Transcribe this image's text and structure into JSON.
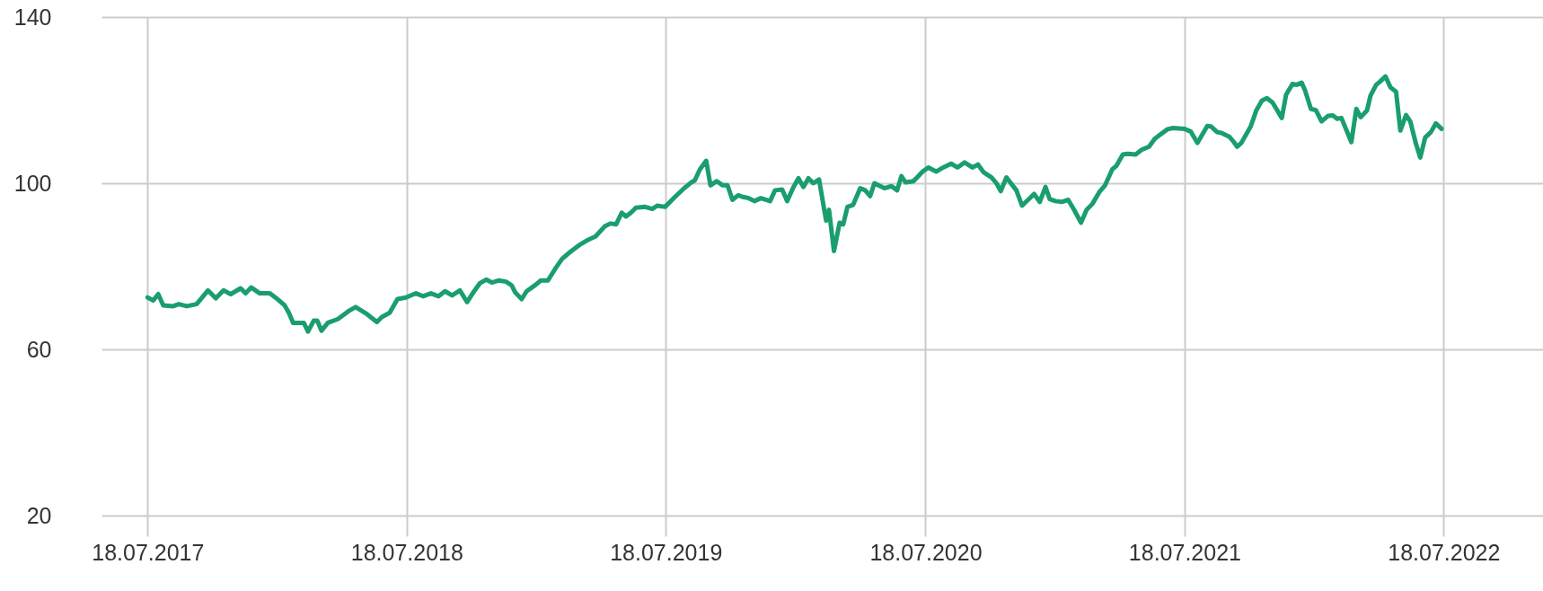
{
  "chart_data": {
    "type": "line",
    "x": [
      "2017-07-18",
      "2017-07-26",
      "2017-08-02",
      "2017-08-09",
      "2017-08-23",
      "2017-08-31",
      "2017-09-11",
      "2017-09-25",
      "2017-10-11",
      "2017-10-22",
      "2017-11-02",
      "2017-11-12",
      "2017-11-26",
      "2017-12-03",
      "2017-12-11",
      "2017-12-23",
      "2018-01-06",
      "2018-01-17",
      "2018-01-27",
      "2018-02-02",
      "2018-02-08",
      "2018-02-23",
      "2018-03-01",
      "2018-03-09",
      "2018-03-14",
      "2018-03-20",
      "2018-03-29",
      "2018-04-12",
      "2018-04-27",
      "2018-05-07",
      "2018-05-23",
      "2018-06-06",
      "2018-06-13",
      "2018-06-24",
      "2018-07-05",
      "2018-07-17",
      "2018-07-31",
      "2018-08-10",
      "2018-08-21",
      "2018-09-01",
      "2018-09-10",
      "2018-09-20",
      "2018-10-01",
      "2018-10-11",
      "2018-10-19",
      "2018-10-29",
      "2018-11-07",
      "2018-11-15",
      "2018-11-25",
      "2018-12-05",
      "2018-12-13",
      "2018-12-18",
      "2018-12-27",
      "2019-01-03",
      "2019-01-16",
      "2019-01-23",
      "2019-02-02",
      "2019-02-13",
      "2019-02-22",
      "2019-03-05",
      "2019-03-18",
      "2019-04-01",
      "2019-04-10",
      "2019-04-23",
      "2019-05-01",
      "2019-05-09",
      "2019-05-17",
      "2019-05-23",
      "2019-05-30",
      "2019-06-06",
      "2019-06-19",
      "2019-06-29",
      "2019-07-06",
      "2019-07-17",
      "2019-07-31",
      "2019-08-13",
      "2019-08-23",
      "2019-08-28",
      "2019-09-04",
      "2019-09-13",
      "2019-09-19",
      "2019-09-28",
      "2019-10-06",
      "2019-10-13",
      "2019-10-20",
      "2019-10-28",
      "2019-11-04",
      "2019-11-12",
      "2019-11-20",
      "2019-11-29",
      "2019-12-12",
      "2019-12-19",
      "2019-12-29",
      "2020-01-05",
      "2020-01-14",
      "2020-01-21",
      "2020-01-28",
      "2020-02-04",
      "2020-02-11",
      "2020-02-19",
      "2020-02-29",
      "2020-03-04",
      "2020-03-11",
      "2020-03-19",
      "2020-03-24",
      "2020-03-30",
      "2020-04-07",
      "2020-04-17",
      "2020-04-24",
      "2020-05-01",
      "2020-05-07",
      "2020-05-21",
      "2020-05-31",
      "2020-06-08",
      "2020-06-14",
      "2020-06-20",
      "2020-07-01",
      "2020-07-14",
      "2020-07-22",
      "2020-08-02",
      "2020-08-12",
      "2020-08-23",
      "2020-09-01",
      "2020-09-11",
      "2020-09-22",
      "2020-09-30",
      "2020-10-08",
      "2020-10-19",
      "2020-10-26",
      "2020-11-01",
      "2020-11-09",
      "2020-11-23",
      "2020-12-01",
      "2020-12-18",
      "2020-12-26",
      "2021-01-03",
      "2021-01-09",
      "2021-01-17",
      "2021-01-26",
      "2021-02-04",
      "2021-02-13",
      "2021-02-22",
      "2021-03-02",
      "2021-03-10",
      "2021-03-20",
      "2021-03-28",
      "2021-04-07",
      "2021-04-13",
      "2021-04-22",
      "2021-04-29",
      "2021-05-10",
      "2021-05-18",
      "2021-05-29",
      "2021-06-06",
      "2021-06-13",
      "2021-06-24",
      "2021-07-02",
      "2021-07-18",
      "2021-07-27",
      "2021-08-05",
      "2021-08-19",
      "2021-08-24",
      "2021-09-02",
      "2021-09-08",
      "2021-09-19",
      "2021-09-25",
      "2021-09-30",
      "2021-10-06",
      "2021-10-19",
      "2021-10-27",
      "2021-11-04",
      "2021-11-11",
      "2021-11-19",
      "2021-12-02",
      "2021-12-08",
      "2021-12-17",
      "2021-12-23",
      "2021-12-30",
      "2022-01-04",
      "2022-01-12",
      "2022-01-19",
      "2022-01-27",
      "2022-02-05",
      "2022-02-12",
      "2022-02-18",
      "2022-02-24",
      "2022-03-10",
      "2022-03-17",
      "2022-03-23",
      "2022-04-01",
      "2022-04-06",
      "2022-04-14",
      "2022-04-19",
      "2022-04-27",
      "2022-05-04",
      "2022-05-12",
      "2022-05-18",
      "2022-05-26",
      "2022-06-01",
      "2022-06-09",
      "2022-06-15",
      "2022-06-22",
      "2022-06-30",
      "2022-07-07",
      "2022-07-15"
    ],
    "series": [
      {
        "color": "#1a9e6e",
        "values": [
          72.5,
          71.8,
          73.3,
          70.6,
          70.4,
          70.9,
          70.4,
          70.9,
          74.2,
          72.3,
          74.2,
          73.3,
          74.7,
          73.5,
          74.9,
          73.5,
          73.5,
          72.1,
          70.6,
          68.8,
          66.4,
          66.4,
          64.3,
          66.9,
          66.9,
          64.5,
          66.4,
          67.3,
          69.2,
          70.2,
          68.5,
          66.6,
          67.8,
          68.8,
          72.1,
          72.5,
          73.5,
          72.8,
          73.5,
          72.8,
          74.0,
          73.0,
          74.2,
          71.4,
          73.5,
          75.9,
          76.8,
          76.1,
          76.6,
          76.3,
          75.4,
          73.7,
          72.1,
          74.0,
          75.6,
          76.6,
          76.6,
          79.6,
          81.8,
          83.4,
          85.1,
          86.5,
          87.2,
          89.6,
          90.3,
          90.1,
          92.9,
          92.0,
          92.9,
          94.1,
          94.3,
          93.8,
          94.6,
          94.3,
          96.7,
          98.8,
          100.2,
          100.7,
          103.3,
          105.4,
          99.5,
          100.5,
          99.5,
          99.5,
          96.0,
          97.1,
          96.7,
          96.4,
          95.7,
          96.4,
          95.7,
          98.3,
          98.5,
          95.7,
          99.1,
          101.2,
          99.1,
          101.2,
          100.0,
          100.9,
          91.0,
          93.6,
          83.7,
          90.5,
          90.1,
          94.3,
          94.8,
          98.8,
          98.3,
          96.9,
          100.0,
          98.8,
          99.3,
          98.3,
          101.7,
          100.2,
          100.5,
          102.8,
          103.8,
          102.8,
          103.8,
          104.7,
          103.8,
          105.0,
          103.8,
          104.5,
          102.6,
          101.4,
          100.0,
          98.1,
          101.4,
          98.3,
          94.6,
          97.4,
          95.5,
          99.1,
          96.2,
          95.7,
          95.5,
          96.0,
          93.4,
          90.5,
          93.6,
          95.0,
          97.9,
          99.5,
          103.3,
          104.2,
          106.9,
          107.1,
          106.9,
          108.0,
          108.8,
          110.7,
          111.6,
          113.0,
          113.3,
          113.1,
          112.4,
          109.7,
          113.8,
          113.7,
          112.3,
          112.1,
          111.2,
          110.0,
          108.8,
          109.7,
          113.6,
          117.5,
          119.9,
          120.5,
          119.4,
          115.7,
          121.3,
          123.9,
          123.7,
          124.2,
          122.2,
          117.9,
          117.6,
          114.9,
          116.2,
          116.3,
          115.5,
          115.7,
          109.9,
          117.9,
          115.9,
          117.5,
          121.1,
          123.7,
          124.4,
          125.7,
          123.1,
          122.0,
          112.7,
          116.4,
          114.9,
          109.5,
          106.2,
          111.0,
          112.3,
          114.4,
          113.1
        ]
      }
    ],
    "xlim": [
      "2017-05-14",
      "2022-12-05"
    ],
    "xticks": [
      {
        "value": "2017-07-18",
        "label": "18.07.2017"
      },
      {
        "value": "2018-07-18",
        "label": "18.07.2018"
      },
      {
        "value": "2019-07-18",
        "label": "18.07.2019"
      },
      {
        "value": "2020-07-18",
        "label": "18.07.2020"
      },
      {
        "value": "2021-07-18",
        "label": "18.07.2021"
      },
      {
        "value": "2022-07-18",
        "label": "18.07.2022"
      }
    ],
    "ylim": [
      20,
      140
    ],
    "yticks": [
      20,
      60,
      100,
      140
    ],
    "grid": true
  }
}
